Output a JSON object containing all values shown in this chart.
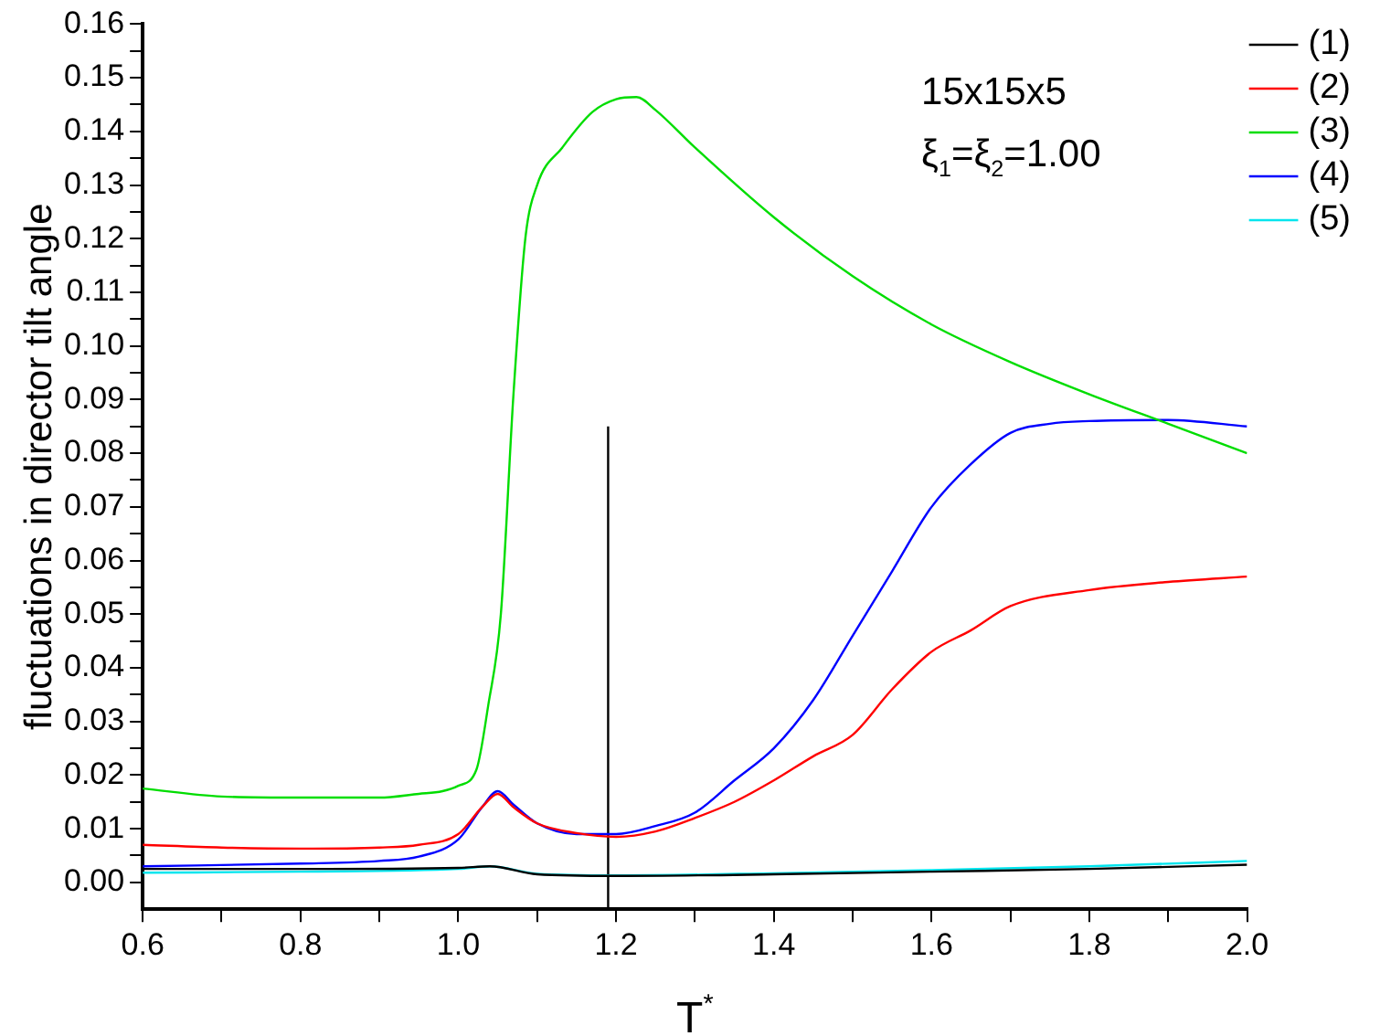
{
  "chart_data": {
    "type": "line",
    "xlabel": "T$^{*}$",
    "ylabel": "fluctuations in director tilt angle",
    "annotations": [
      "15x15x5",
      "ξ$_{1}$=ξ$_{2}$=1.00"
    ],
    "xlim": [
      0.6,
      2.0
    ],
    "xticks": [
      0.6,
      {
        "value": 0.7,
        "label": null
      },
      0.8,
      {
        "value": 0.9,
        "label": null
      },
      {
        "value": 1.0,
        "label": "1.0"
      },
      {
        "value": 1.1,
        "label": null
      },
      1.2,
      {
        "value": 1.3,
        "label": null
      },
      1.4,
      {
        "value": 1.5,
        "label": null
      },
      1.6,
      {
        "value": 1.7,
        "label": null
      },
      1.8,
      {
        "value": 1.9,
        "label": null
      },
      {
        "value": 2.0,
        "label": "2.0"
      }
    ],
    "ylim": [
      -0.005,
      0.16
    ],
    "yticks": [
      {
        "value": 0,
        "label": "0.00"
      },
      {
        "value": 0.005,
        "label": null
      },
      {
        "value": 0.01,
        "label": "0.01"
      },
      {
        "value": 0.015,
        "label": null
      },
      {
        "value": 0.02,
        "label": "0.02"
      },
      {
        "value": 0.025,
        "label": null
      },
      {
        "value": 0.03,
        "label": "0.03"
      },
      {
        "value": 0.035,
        "label": null
      },
      {
        "value": 0.04,
        "label": "0.04"
      },
      {
        "value": 0.045,
        "label": null
      },
      {
        "value": 0.05,
        "label": "0.05"
      },
      {
        "value": 0.055,
        "label": null
      },
      {
        "value": 0.06,
        "label": "0.06"
      },
      {
        "value": 0.065,
        "label": null
      },
      {
        "value": 0.07,
        "label": "0.07"
      },
      {
        "value": 0.075,
        "label": null
      },
      {
        "value": 0.08,
        "label": "0.08"
      },
      {
        "value": 0.085,
        "label": null
      },
      {
        "value": 0.09,
        "label": "0.09"
      },
      {
        "value": 0.095,
        "label": null
      },
      {
        "value": 0.1,
        "label": "0.10"
      },
      {
        "value": 0.105,
        "label": null
      },
      {
        "value": 0.11,
        "label": "0.11"
      },
      {
        "value": 0.115,
        "label": null
      },
      {
        "value": 0.12,
        "label": "0.12"
      },
      {
        "value": 0.125,
        "label": null
      },
      {
        "value": 0.13,
        "label": "0.13"
      },
      {
        "value": 0.135,
        "label": null
      },
      {
        "value": 0.14,
        "label": "0.14"
      },
      {
        "value": 0.145,
        "label": null
      },
      {
        "value": 0.15,
        "label": "0.15"
      },
      {
        "value": 0.155,
        "label": null
      },
      {
        "value": 0.16,
        "label": "0.16"
      }
    ],
    "grid": false,
    "legend": "top right",
    "marker": "none",
    "line_style": "solid",
    "series": [
      {
        "name": "(1)",
        "color": "#000000",
        "x": [
          0.6,
          0.8,
          1.0,
          1.04,
          1.1,
          1.2,
          1.4,
          1.6,
          1.8,
          2.0
        ],
        "values": [
          0.0025,
          0.0025,
          0.0027,
          0.003,
          0.0015,
          0.0012,
          0.0015,
          0.002,
          0.0025,
          0.0033
        ]
      },
      {
        "name": "(2)",
        "color": "#ff0000",
        "x": [
          0.6,
          0.7,
          0.8,
          0.9,
          0.95,
          1.0,
          1.03,
          1.05,
          1.07,
          1.1,
          1.15,
          1.2,
          1.25,
          1.3,
          1.35,
          1.4,
          1.45,
          1.5,
          1.55,
          1.6,
          1.65,
          1.7,
          1.8,
          1.9,
          2.0
        ],
        "values": [
          0.007,
          0.0065,
          0.0063,
          0.0065,
          0.007,
          0.009,
          0.014,
          0.0165,
          0.014,
          0.011,
          0.0092,
          0.0085,
          0.0095,
          0.012,
          0.015,
          0.019,
          0.0235,
          0.0275,
          0.036,
          0.043,
          0.047,
          0.0515,
          0.0545,
          0.056,
          0.057
        ]
      },
      {
        "name": "(3)",
        "color": "#00dd00",
        "x": [
          0.6,
          0.7,
          0.8,
          0.9,
          0.95,
          0.98,
          1.0,
          1.023,
          1.038,
          1.054,
          1.07,
          1.085,
          1.1,
          1.132,
          1.17,
          1.2,
          1.226,
          1.25,
          1.3,
          1.4,
          1.5,
          1.6,
          1.7,
          1.8,
          1.9,
          2.0
        ],
        "values": [
          0.0175,
          0.016,
          0.0158,
          0.0158,
          0.0165,
          0.017,
          0.018,
          0.021,
          0.033,
          0.05,
          0.091,
          0.12,
          0.13,
          0.137,
          0.1436,
          0.146,
          0.1464,
          0.144,
          0.137,
          0.124,
          0.113,
          0.104,
          0.097,
          0.091,
          0.0855,
          0.08
        ]
      },
      {
        "name": "(4)",
        "color": "#0000ff",
        "x": [
          0.6,
          0.8,
          0.9,
          0.95,
          1.0,
          1.03,
          1.05,
          1.07,
          1.1,
          1.15,
          1.2,
          1.25,
          1.3,
          1.35,
          1.4,
          1.45,
          1.5,
          1.55,
          1.6,
          1.65,
          1.7,
          1.75,
          1.8,
          1.9,
          2.0
        ],
        "values": [
          0.003,
          0.0035,
          0.004,
          0.0048,
          0.008,
          0.014,
          0.017,
          0.0145,
          0.011,
          0.009,
          0.009,
          0.0105,
          0.013,
          0.019,
          0.025,
          0.034,
          0.046,
          0.058,
          0.07,
          0.078,
          0.0838,
          0.0855,
          0.086,
          0.0862,
          0.085
        ]
      },
      {
        "name": "(5)",
        "color": "#00e5ee",
        "x": [
          0.6,
          0.8,
          1.0,
          1.04,
          1.1,
          1.2,
          1.4,
          1.6,
          1.8,
          2.0
        ],
        "values": [
          0.0018,
          0.002,
          0.0025,
          0.003,
          0.0016,
          0.0013,
          0.0017,
          0.0023,
          0.003,
          0.004
        ]
      },
      {
        "color": "#000000",
        "x": [
          1.19,
          1.19
        ],
        "values": [
          -0.005,
          0.085
        ]
      }
    ]
  }
}
